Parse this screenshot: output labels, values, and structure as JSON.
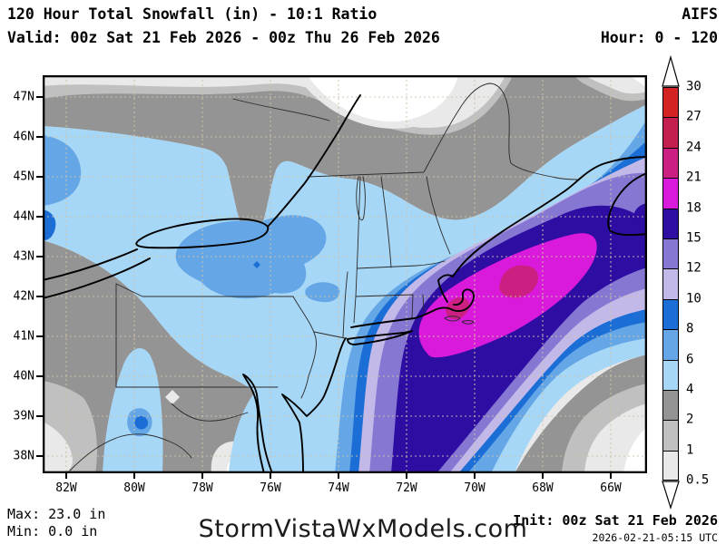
{
  "header": {
    "title": "120 Hour Total Snowfall (in) - 10:1 Ratio",
    "model": "AIFS",
    "valid": "Valid: 00z Sat 21 Feb 2026 - 00z Thu 26 Feb 2026",
    "hour_range": "Hour: 0 - 120"
  },
  "footer": {
    "max_label": "Max: 23.0 in",
    "min_label": "Min: 0.0 in",
    "watermark": "StormVistaWxModels.com",
    "init_label": "Init: 00z Sat 21 Feb 2026",
    "generated_label": "2026-02-21-05:15 UTC"
  },
  "axes": {
    "lat_labels": [
      "47N",
      "46N",
      "45N",
      "44N",
      "43N",
      "42N",
      "41N",
      "40N",
      "39N",
      "38N"
    ],
    "lon_labels": [
      "82W",
      "80W",
      "78W",
      "76W",
      "74W",
      "72W",
      "70W",
      "68W",
      "66W"
    ]
  },
  "colorbar": {
    "labels_top_to_bottom": [
      "30",
      "27",
      "24",
      "21",
      "18",
      "15",
      "12",
      "10",
      "8",
      "6",
      "4",
      "2",
      "1",
      "0.5"
    ],
    "segment_colors_top_to_bottom": [
      "#d32322",
      "#c32050",
      "#cb2081",
      "#da1ada",
      "#2d0da2",
      "#8677d3",
      "#c3b9e9",
      "#1c6ed7",
      "#64a6e6",
      "#a7d7f6",
      "#949494",
      "#c0c0c0",
      "#e9e9e9"
    ],
    "below_min_color": "#ffffff"
  },
  "chart_data": {
    "type": "heatmap",
    "subtype": "filled-contour snowfall forecast map",
    "title": "120 Hour Total Snowfall (in) - 10:1 Ratio",
    "model": "AIFS",
    "valid_from": "00z Sat 21 Feb 2026",
    "valid_to": "00z Thu 26 Feb 2026",
    "forecast_hour_range": [
      0,
      120
    ],
    "init_time": "00z Sat 21 Feb 2026",
    "generated": "2026-02-21-05:15 UTC",
    "units": "in",
    "snow_ratio": "10:1",
    "max_value_in": 23.0,
    "min_value_in": 0.0,
    "contour_levels_in": [
      0.5,
      1,
      2,
      4,
      6,
      8,
      10,
      12,
      15,
      18,
      21,
      24,
      27,
      30
    ],
    "level_colors_low_to_high": [
      "#ffffff",
      "#e9e9e9",
      "#c0c0c0",
      "#949494",
      "#a7d7f6",
      "#64a6e6",
      "#1c6ed7",
      "#c3b9e9",
      "#8677d3",
      "#2d0da2",
      "#da1ada",
      "#cb2081",
      "#c32050",
      "#d32322"
    ],
    "lat_ticks": [
      "47N",
      "46N",
      "45N",
      "44N",
      "43N",
      "42N",
      "41N",
      "40N",
      "39N",
      "38N"
    ],
    "lon_ticks": [
      "82W",
      "80W",
      "78W",
      "76W",
      "74W",
      "72W",
      "70W",
      "68W",
      "66W"
    ],
    "region": "Northeastern United States and adjacent Canada/Atlantic (82W-66W, 38N-47N)",
    "summary": "A SW-NE oriented heavy snow band (15-24 in) covers southern New England, eastern Massachusetts and offshore waters; peak 21-24 in (max 23.0) just east of Cape Cod; 12-18 in over coastal NJ, Long Island, CT/RI; 4-8 in across upstate New York, Vermont, New Hampshire and coastal Maine; 2-4 in over Quebec/Ontario and northern Maine; 0.5-4 in over West Virginia, Virginia and the Chesapeake region with a local 8-10 in spot in the Alleghenies; near zero far southeast offshore."
  }
}
